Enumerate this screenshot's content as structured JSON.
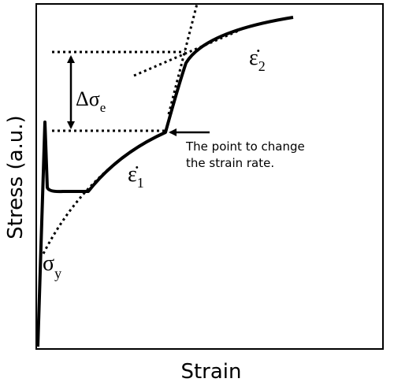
{
  "axes": {
    "y_label": "Stress (a.u.)",
    "x_label": "Strain"
  },
  "labels": {
    "delta_sigma": {
      "symbol": "Δσ",
      "subscript": "e"
    },
    "sigma_y": {
      "symbol": "σ",
      "subscript": "y"
    },
    "epsilon_1": {
      "symbol": "ε̇",
      "subscript": "1"
    },
    "epsilon_2": {
      "symbol": "ε̇",
      "subscript": "2"
    }
  },
  "annotation": {
    "lines": [
      "The point to change",
      "the strain rate."
    ]
  }
}
